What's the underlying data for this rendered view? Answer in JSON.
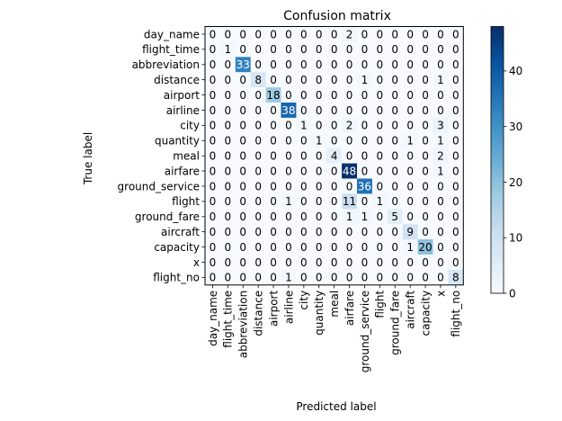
{
  "chart_data": {
    "type": "heatmap",
    "title": "Confusion matrix",
    "xlabel": "Predicted label",
    "ylabel": "True label",
    "labels": [
      "day_name",
      "flight_time",
      "abbreviation",
      "distance",
      "airport",
      "airline",
      "city",
      "quantity",
      "meal",
      "airfare",
      "ground_service",
      "flight",
      "ground_fare",
      "aircraft",
      "capacity",
      "x",
      "flight_no"
    ],
    "matrix": [
      [
        0,
        0,
        0,
        0,
        0,
        0,
        0,
        0,
        0,
        2,
        0,
        0,
        0,
        0,
        0,
        0,
        0
      ],
      [
        0,
        1,
        0,
        0,
        0,
        0,
        0,
        0,
        0,
        0,
        0,
        0,
        0,
        0,
        0,
        0,
        0
      ],
      [
        0,
        0,
        33,
        0,
        0,
        0,
        0,
        0,
        0,
        0,
        0,
        0,
        0,
        0,
        0,
        0,
        0
      ],
      [
        0,
        0,
        0,
        8,
        0,
        0,
        0,
        0,
        0,
        0,
        1,
        0,
        0,
        0,
        0,
        1,
        0
      ],
      [
        0,
        0,
        0,
        0,
        18,
        0,
        0,
        0,
        0,
        0,
        0,
        0,
        0,
        0,
        0,
        0,
        0
      ],
      [
        0,
        0,
        0,
        0,
        0,
        38,
        0,
        0,
        0,
        0,
        0,
        0,
        0,
        0,
        0,
        0,
        0
      ],
      [
        0,
        0,
        0,
        0,
        0,
        0,
        1,
        0,
        0,
        2,
        0,
        0,
        0,
        0,
        0,
        3,
        0
      ],
      [
        0,
        0,
        0,
        0,
        0,
        0,
        0,
        1,
        0,
        0,
        0,
        0,
        0,
        1,
        0,
        1,
        0
      ],
      [
        0,
        0,
        0,
        0,
        0,
        0,
        0,
        0,
        4,
        0,
        0,
        0,
        0,
        0,
        0,
        2,
        0
      ],
      [
        0,
        0,
        0,
        0,
        0,
        0,
        0,
        0,
        0,
        48,
        0,
        0,
        0,
        0,
        0,
        1,
        0
      ],
      [
        0,
        0,
        0,
        0,
        0,
        0,
        0,
        0,
        0,
        0,
        36,
        0,
        0,
        0,
        0,
        0,
        0
      ],
      [
        0,
        0,
        0,
        0,
        0,
        1,
        0,
        0,
        0,
        11,
        0,
        1,
        0,
        0,
        0,
        0,
        0
      ],
      [
        0,
        0,
        0,
        0,
        0,
        0,
        0,
        0,
        0,
        1,
        1,
        0,
        5,
        0,
        0,
        0,
        0
      ],
      [
        0,
        0,
        0,
        0,
        0,
        0,
        0,
        0,
        0,
        0,
        0,
        0,
        0,
        9,
        0,
        0,
        0
      ],
      [
        0,
        0,
        0,
        0,
        0,
        0,
        0,
        0,
        0,
        0,
        0,
        0,
        0,
        1,
        20,
        0,
        0
      ],
      [
        0,
        0,
        0,
        0,
        0,
        0,
        0,
        0,
        0,
        0,
        0,
        0,
        0,
        0,
        0,
        0,
        0
      ],
      [
        0,
        0,
        0,
        0,
        0,
        1,
        0,
        0,
        0,
        0,
        0,
        0,
        0,
        0,
        0,
        0,
        8
      ]
    ],
    "colormap": "Blues",
    "vmin": 0,
    "vmax": 48,
    "colorbar_ticks": [
      0,
      10,
      20,
      30,
      40
    ],
    "grid": false
  }
}
